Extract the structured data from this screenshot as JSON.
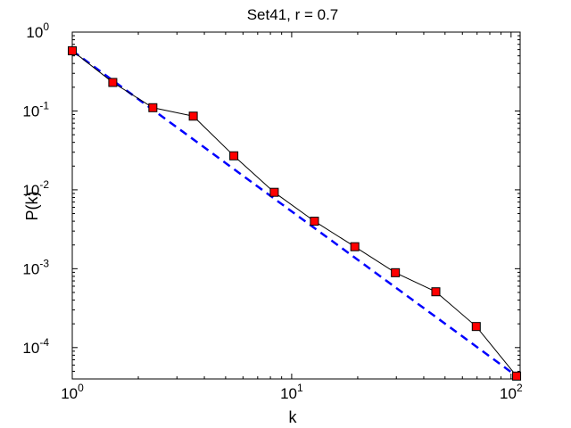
{
  "chart_data": {
    "type": "line",
    "title": "Set41, r = 0.7",
    "xlabel": "k",
    "ylabel": "P(k)",
    "xscale": "log",
    "yscale": "log",
    "xlim": [
      1,
      110
    ],
    "ylim": [
      4e-05,
      1
    ],
    "grid": false,
    "legend": "none",
    "x_ticks": [
      {
        "value": 1,
        "base": "10",
        "exp": "0"
      },
      {
        "value": 10,
        "base": "10",
        "exp": "1"
      },
      {
        "value": 100,
        "base": "10",
        "exp": "2"
      }
    ],
    "y_ticks": [
      {
        "value": 1,
        "base": "10",
        "exp": "0"
      },
      {
        "value": 0.1,
        "base": "10",
        "exp": "-1"
      },
      {
        "value": 0.01,
        "base": "10",
        "exp": "-2"
      },
      {
        "value": 0.001,
        "base": "10",
        "exp": "-3"
      },
      {
        "value": 0.0001,
        "base": "10",
        "exp": "-4"
      }
    ],
    "series": [
      {
        "style": "solid black line with red square markers",
        "color": "#000000",
        "marker_color": "#ff0000",
        "x": [
          1.0,
          1.53,
          2.33,
          3.56,
          5.45,
          8.33,
          12.7,
          19.4,
          29.7,
          45.4,
          69.4,
          106.0
        ],
        "y": [
          0.58,
          0.23,
          0.11,
          0.086,
          0.027,
          0.0093,
          0.004,
          0.0019,
          0.00089,
          0.00051,
          0.000185,
          4.35e-05
        ]
      },
      {
        "style": "dashed blue fit line",
        "color": "#0000ff",
        "x": [
          1.0,
          106.0
        ],
        "y": [
          0.58,
          4.35e-05
        ]
      }
    ]
  }
}
